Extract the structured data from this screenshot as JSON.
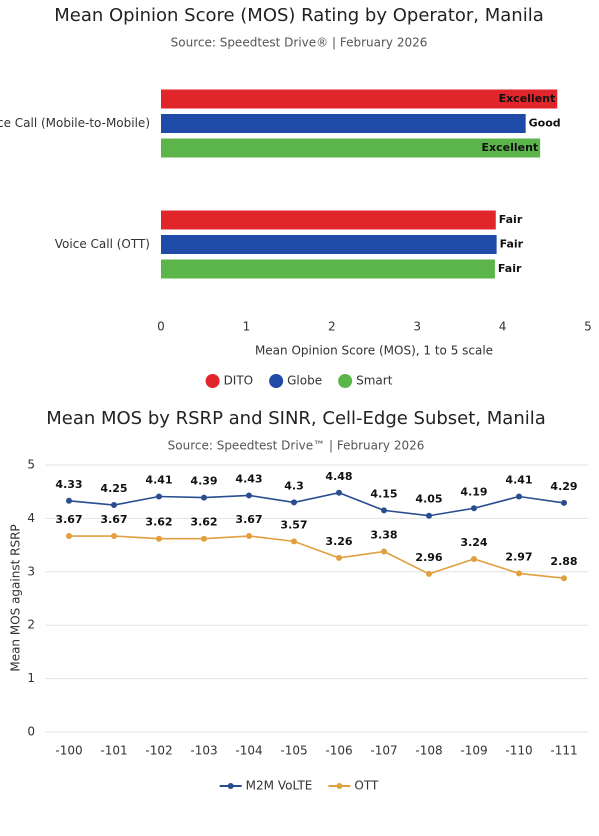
{
  "chart_data": [
    {
      "type": "hbar",
      "title": "Mean Opinion Score (MOS) Rating by Operator, Manila",
      "subtitle": "Source: Speedtest Drive® | February 2026",
      "categories": [
        "Voice Call (Mobile-to-Mobile)",
        "Voice Call (OTT)"
      ],
      "series": [
        {
          "name": "DITO",
          "color": "#e0262b",
          "values": [
            4.64,
            3.92
          ],
          "value_labels": [
            "Excellent",
            "Fair"
          ]
        },
        {
          "name": "Globe",
          "color": "#1f4aa8",
          "values": [
            4.27,
            3.93
          ],
          "value_labels": [
            "Good",
            "Fair"
          ]
        },
        {
          "name": "Smart",
          "color": "#5cb54a",
          "values": [
            4.44,
            3.91
          ],
          "value_labels": [
            "Excellent",
            "Fair"
          ]
        }
      ],
      "xlabel": "Mean Opinion Score (MOS), 1 to 5 scale",
      "xlim": [
        0,
        5
      ],
      "xticks": [
        0,
        1,
        2,
        3,
        4,
        5
      ],
      "grid": false,
      "legend": "bottom"
    },
    {
      "type": "line",
      "title": "Mean MOS by RSRP and SINR, Cell-Edge Subset, Manila",
      "subtitle": "Source: Speedtest Drive™ | February 2026",
      "categories": [
        "-100",
        "-101",
        "-102",
        "-103",
        "-104",
        "-105",
        "-106",
        "-107",
        "-108",
        "-109",
        "-110",
        "-111"
      ],
      "series": [
        {
          "name": "M2M VoLTE",
          "color": "#2a4d8f",
          "values": [
            4.33,
            4.25,
            4.41,
            4.39,
            4.43,
            4.3,
            4.48,
            4.15,
            4.05,
            4.19,
            4.41,
            4.29
          ]
        },
        {
          "name": "OTT",
          "color": "#e0a040",
          "values": [
            3.67,
            3.67,
            3.62,
            3.62,
            3.67,
            3.57,
            3.26,
            3.38,
            2.96,
            3.24,
            2.97,
            2.88
          ]
        }
      ],
      "ylabel": "Mean MOS against RSRP",
      "ylim": [
        0,
        5
      ],
      "yticks": [
        0,
        1,
        2,
        3,
        4,
        5
      ],
      "grid": true,
      "legend": "bottom"
    }
  ]
}
